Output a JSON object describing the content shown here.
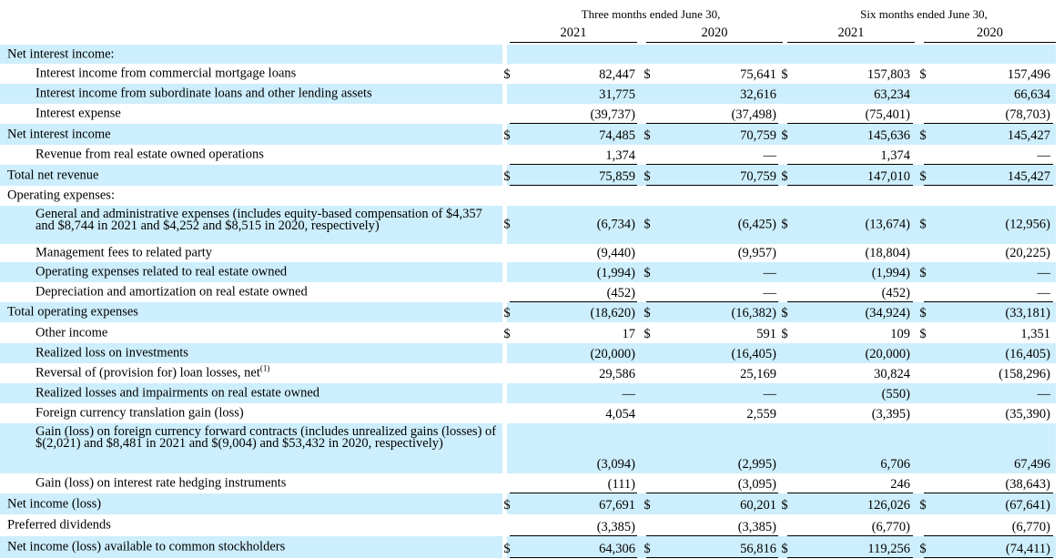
{
  "header": {
    "group1": "Three months ended June 30,",
    "group2": "Six months ended June 30,",
    "years": [
      "2021",
      "2020",
      "2021",
      "2020"
    ]
  },
  "rows": [
    {
      "label": "Net interest income:",
      "indent": 0,
      "shaded": true,
      "values": []
    },
    {
      "label": "Interest income from commercial mortgage loans",
      "indent": 1,
      "shaded": false,
      "dollar": [
        true,
        true,
        true,
        true
      ],
      "values": [
        "82,447",
        "75,641",
        "157,803",
        "157,496"
      ]
    },
    {
      "label": "Interest income from subordinate loans and other lending assets",
      "indent": 1,
      "shaded": true,
      "values": [
        "31,775",
        "32,616",
        "63,234",
        "66,634"
      ]
    },
    {
      "label": "Interest expense",
      "indent": 1,
      "shaded": false,
      "values": [
        "(39,737)",
        "(37,498)",
        "(75,401)",
        "(78,703)"
      ],
      "underline": true
    },
    {
      "label": "Net interest income",
      "indent": 0,
      "shaded": true,
      "dollar": [
        true,
        true,
        true,
        true
      ],
      "values": [
        "74,485",
        "70,759",
        "145,636",
        "145,427"
      ]
    },
    {
      "label": "Revenue from real estate owned operations",
      "indent": 1,
      "shaded": false,
      "values": [
        "1,374",
        "—",
        "1,374",
        "—"
      ],
      "underline": true
    },
    {
      "label": "Total net revenue",
      "indent": 0,
      "shaded": true,
      "dollar": [
        true,
        true,
        true,
        true
      ],
      "values": [
        "75,859",
        "70,759",
        "147,010",
        "145,427"
      ],
      "underline": true
    },
    {
      "label": "Operating expenses:",
      "indent": 0,
      "shaded": false,
      "values": []
    },
    {
      "label": "General and administrative expenses (includes equity-based compensation of $4,357 and $8,744 in 2021 and $4,252 and $8,515 in 2020, respectively)",
      "indent": 1,
      "shaded": true,
      "dollar": [
        true,
        true,
        true,
        true
      ],
      "values": [
        "(6,734)",
        "(6,425)",
        "(13,674)",
        "(12,956)"
      ],
      "tall": 2
    },
    {
      "label": "Management fees to related party",
      "indent": 1,
      "shaded": false,
      "values": [
        "(9,440)",
        "(9,957)",
        "(18,804)",
        "(20,225)"
      ]
    },
    {
      "label": "Operating expenses related to real estate owned",
      "indent": 1,
      "shaded": true,
      "dollar": [
        false,
        true,
        false,
        true
      ],
      "values": [
        "(1,994)",
        "—",
        "(1,994)",
        "—"
      ]
    },
    {
      "label": "Depreciation and amortization on real estate owned",
      "indent": 1,
      "shaded": false,
      "values": [
        "(452)",
        "—",
        "(452)",
        "—"
      ],
      "underline": true
    },
    {
      "label": "Total operating expenses",
      "indent": 0,
      "shaded": true,
      "dollar": [
        true,
        true,
        true,
        true
      ],
      "values": [
        "(18,620)",
        "(16,382)",
        "(34,924)",
        "(33,181)"
      ]
    },
    {
      "label": "Other income",
      "indent": 1,
      "shaded": false,
      "dollar": [
        true,
        true,
        true,
        true
      ],
      "values": [
        "17",
        "591",
        "109",
        "1,351"
      ]
    },
    {
      "label": "Realized loss on investments",
      "indent": 1,
      "shaded": true,
      "values": [
        "(20,000)",
        "(16,405)",
        "(20,000)",
        "(16,405)"
      ]
    },
    {
      "label": "Reversal of (provision for) loan losses, net",
      "sup": "(1)",
      "indent": 1,
      "shaded": false,
      "values": [
        "29,586",
        "25,169",
        "30,824",
        "(158,296)"
      ]
    },
    {
      "label": "Realized losses and impairments on real estate owned",
      "indent": 1,
      "shaded": true,
      "values": [
        "—",
        "—",
        "(550)",
        "—"
      ]
    },
    {
      "label": "Foreign currency translation gain (loss)",
      "indent": 1,
      "shaded": false,
      "values": [
        "4,054",
        "2,559",
        "(3,395)",
        "(35,390)"
      ]
    },
    {
      "label": "Gain (loss) on foreign currency forward contracts (includes unrealized gains (losses) of $(2,021) and $8,481 in 2021 and $(9,004) and $53,432 in 2020, respectively)",
      "indent": 1,
      "shaded": true,
      "values": [
        "(3,094)",
        "(2,995)",
        "6,706",
        "67,496"
      ],
      "tall": 3
    },
    {
      "label": "Gain (loss) on interest rate hedging instruments",
      "indent": 1,
      "shaded": false,
      "values": [
        "(111)",
        "(3,095)",
        "246",
        "(38,643)"
      ],
      "underline": true
    },
    {
      "label": "Net income (loss)",
      "indent": 0,
      "shaded": true,
      "dollar": [
        true,
        true,
        true,
        true
      ],
      "values": [
        "67,691",
        "60,201",
        "126,026",
        "(67,641)"
      ]
    },
    {
      "label": "Preferred dividends",
      "indent": 0,
      "shaded": false,
      "values": [
        "(3,385)",
        "(3,385)",
        "(6,770)",
        "(6,770)"
      ],
      "underline": true
    },
    {
      "label": "Net income (loss) available to common stockholders",
      "indent": 0,
      "shaded": true,
      "dollar": [
        true,
        true,
        true,
        true
      ],
      "values": [
        "64,306",
        "56,816",
        "119,256",
        "(74,411)"
      ],
      "underline": true
    }
  ],
  "dollar_sign": "$"
}
